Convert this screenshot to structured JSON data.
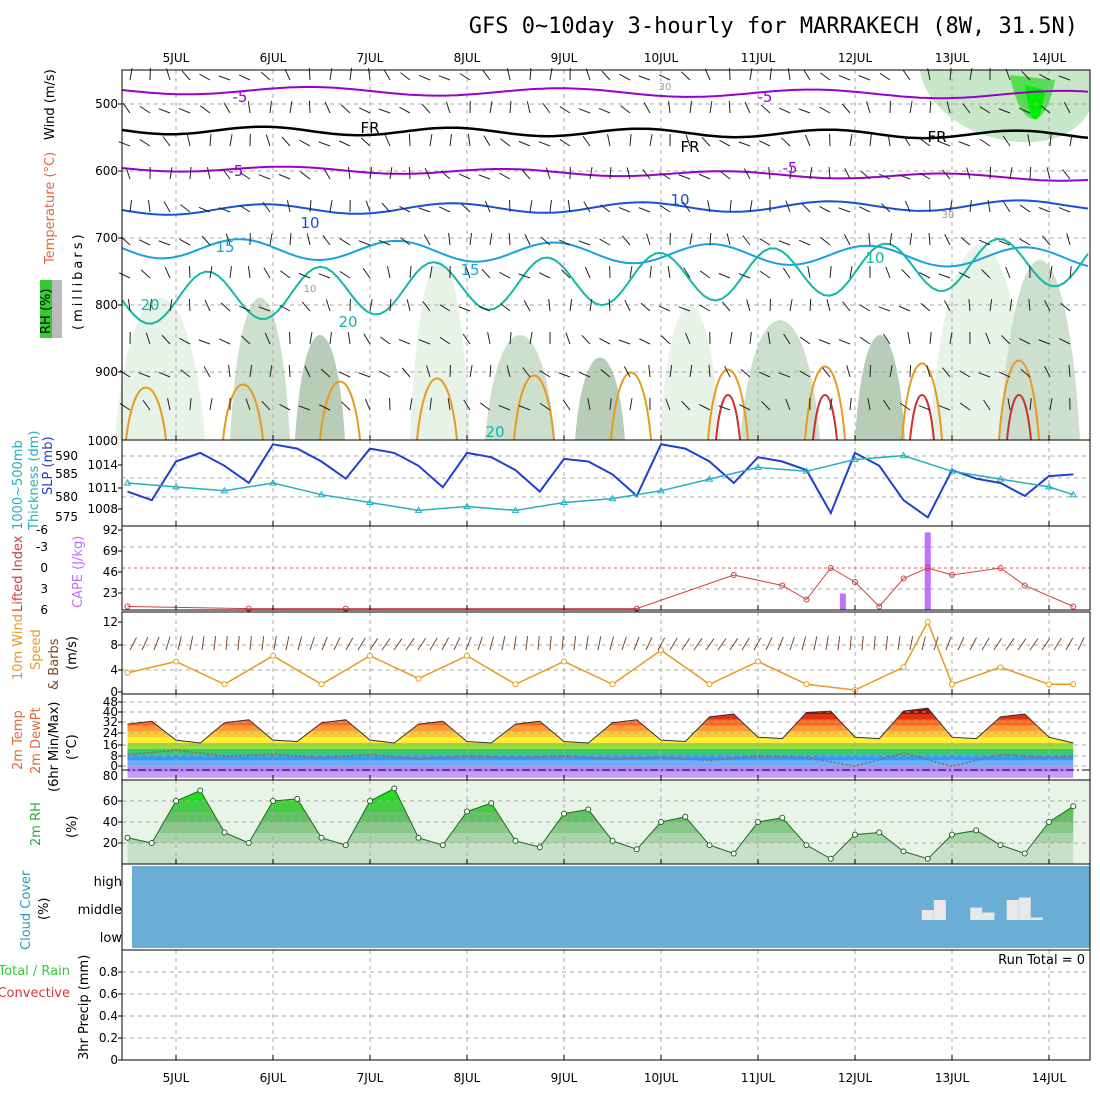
{
  "title": "GFS 0~10day 3-hourly for MARRAKECH (8W, 31.5N)",
  "colors": {
    "temp_purple": "#9900cc",
    "temp_blue": "#1a4fd6",
    "temp_cyan": "#1aa0e0",
    "temp_teal": "#11b8a8",
    "temp_orange": "#e89a20",
    "temp_red": "#d23030",
    "slp": "#1f3fd0",
    "thickness": "#22b0c0",
    "cape": "#c070ff",
    "lifted_index": "#d04040",
    "wind10m": "#e89a20",
    "barb": "#7a4a2a",
    "rh_green": "#33bb33",
    "cloud_bg": "#6aaed6",
    "cloud_fill": "#e8e8e8"
  },
  "date_labels": [
    "5JUL",
    "6JUL",
    "7JUL",
    "8JUL",
    "9JUL",
    "10JUL",
    "11JUL",
    "12JUL",
    "13JUL",
    "14JUL"
  ],
  "panels": {
    "upper": {
      "ylabels": {
        "wind": "Wind (m/s)",
        "temp": "Temperature (°C)",
        "rh": "RH (%)",
        "mb": "(millibars)"
      },
      "yticks": [
        "500",
        "600",
        "700",
        "800",
        "900"
      ],
      "contour_labels": [
        "-5",
        "-5",
        "FR",
        "FR",
        "FR",
        "-5",
        "-5",
        "10",
        "10",
        "15",
        "15",
        "20",
        "20",
        "20",
        "10",
        "30",
        "30",
        "10"
      ]
    },
    "slp": {
      "ylabels": {
        "thick": "Thickness (dm)",
        "thick2": "1000~500mb",
        "slp": "SLP (mb)"
      },
      "left_ticks": [
        "590",
        "585",
        "580",
        "575"
      ],
      "right_ticks": [
        "1014",
        "1011",
        "1008"
      ],
      "top_tick": "1000"
    },
    "cape": {
      "ylabels": {
        "li": "Lifted Index",
        "cape": "CAPE (J/kg)"
      },
      "left_ticks": [
        "-6",
        "-3",
        "0",
        "3",
        "6"
      ],
      "right_ticks": [
        "92",
        "69",
        "46",
        "23"
      ]
    },
    "wind10": {
      "ylabels": {
        "a": "10m Wind",
        "b": "Speed",
        "c": "& Barbs",
        "d": "(m/s)"
      },
      "yticks": [
        "12",
        "8",
        "4",
        "0"
      ]
    },
    "temp2m": {
      "ylabels": {
        "a": "2m Temp",
        "b": "2m DewPt",
        "c": "(6hr Min/Max)",
        "d": "(°C)"
      },
      "yticks": [
        "40",
        "32",
        "24",
        "16",
        "8",
        "0",
        "80"
      ],
      "yticks2": [
        "48",
        "40",
        "32",
        "24",
        "16",
        "8",
        "0"
      ]
    },
    "rh2m": {
      "ylabels": {
        "a": "2m RH",
        "b": "(%)"
      },
      "yticks": [
        "60",
        "40",
        "20"
      ]
    },
    "cloud": {
      "ylabels": {
        "a": "Cloud Cover",
        "b": "(%)"
      },
      "levels": [
        "high",
        "middle",
        "low"
      ]
    },
    "precip": {
      "ylabels": {
        "a": "Total / Rain",
        "b": "Convective",
        "c": "3hr Precip (mm)"
      },
      "yticks": [
        "0.8",
        "0.6",
        "0.4",
        "0.2",
        "0"
      ],
      "run_total": "Run Total = 0"
    }
  },
  "chart_data": [
    {
      "type": "line",
      "name": "SLP (mb)",
      "x": [
        "4JUL12",
        "4JUL18",
        "5JUL00",
        "5JUL06",
        "5JUL12",
        "5JUL18",
        "6JUL00",
        "6JUL06",
        "6JUL12",
        "6JUL18",
        "7JUL00",
        "7JUL06",
        "7JUL12",
        "7JUL18",
        "8JUL00",
        "8JUL06",
        "8JUL12",
        "8JUL18",
        "9JUL00",
        "9JUL06",
        "9JUL12",
        "9JUL18",
        "10JUL00",
        "10JUL06",
        "10JUL12",
        "10JUL18",
        "11JUL00",
        "11JUL06",
        "11JUL12",
        "11JUL18",
        "12JUL00",
        "12JUL06",
        "12JUL12",
        "12JUL18",
        "13JUL00",
        "13JUL06",
        "13JUL12",
        "13JUL18",
        "14JUL00",
        "14JUL06"
      ],
      "values": [
        1010.0,
        1009.0,
        1013.5,
        1014.5,
        1013.0,
        1011.0,
        1015.5,
        1015.0,
        1013.5,
        1011.5,
        1015.0,
        1014.5,
        1013.0,
        1010.5,
        1014.5,
        1014.0,
        1012.5,
        1010.0,
        1013.8,
        1013.5,
        1012.0,
        1009.5,
        1015.5,
        1015.0,
        1013.5,
        1011.0,
        1014.0,
        1013.5,
        1012.5,
        1007.5,
        1014.5,
        1013.0,
        1009.0,
        1007.0,
        1012.5,
        1011.5,
        1011.0,
        1009.5,
        1011.8,
        1012.0
      ],
      "ylim": [
        1006,
        1016
      ]
    },
    {
      "type": "line",
      "name": "1000~500mb Thickness (dm)",
      "x": [
        "4JUL12",
        "5JUL00",
        "5JUL12",
        "6JUL00",
        "6JUL12",
        "7JUL00",
        "7JUL12",
        "8JUL00",
        "8JUL12",
        "9JUL00",
        "9JUL12",
        "10JUL00",
        "10JUL12",
        "11JUL00",
        "11JUL12",
        "12JUL00",
        "12JUL12",
        "13JUL00",
        "13JUL12",
        "14JUL00",
        "14JUL06"
      ],
      "values": [
        583,
        582,
        581,
        583,
        580,
        578,
        576,
        577,
        576,
        578,
        579,
        581,
        584,
        587,
        586,
        589,
        590,
        586,
        584,
        582,
        580
      ],
      "ylim": [
        572,
        594
      ]
    },
    {
      "type": "bar",
      "name": "CAPE (J/kg)",
      "x": [
        "11JUL21",
        "12JUL18"
      ],
      "values": [
        18,
        85
      ],
      "ylim": [
        0,
        92
      ]
    },
    {
      "type": "line",
      "name": "Lifted Index",
      "x": [
        "4JUL12",
        "5JUL18",
        "6JUL18",
        "9JUL18",
        "10JUL18",
        "11JUL06",
        "11JUL12",
        "11JUL18",
        "12JUL00",
        "12JUL06",
        "12JUL12",
        "12JUL18",
        "13JUL00",
        "13JUL12",
        "13JUL18",
        "14JUL06"
      ],
      "values": [
        5.5,
        5.8,
        5.8,
        5.8,
        1.0,
        2.5,
        4.5,
        0.0,
        2.0,
        5.5,
        1.5,
        0.0,
        1.0,
        0.0,
        2.5,
        5.5
      ],
      "ylim": [
        6,
        -6
      ]
    },
    {
      "type": "line",
      "name": "10m Wind Speed (m/s)",
      "x": [
        "4JUL12",
        "5JUL00",
        "5JUL12",
        "6JUL00",
        "6JUL12",
        "7JUL00",
        "7JUL12",
        "8JUL00",
        "8JUL12",
        "9JUL00",
        "9JUL12",
        "10JUL00",
        "10JUL12",
        "11JUL00",
        "11JUL12",
        "12JUL00",
        "12JUL12",
        "12JUL18",
        "13JUL00",
        "13JUL12",
        "14JUL00",
        "14JUL06"
      ],
      "values": [
        3,
        5,
        1,
        6,
        1,
        6,
        2,
        6,
        1,
        5,
        1,
        7,
        1,
        5,
        1,
        0,
        4,
        12,
        1,
        4,
        1,
        1
      ],
      "ylim": [
        0,
        13
      ]
    },
    {
      "type": "area",
      "name": "2m Temp (°C)",
      "x": [
        "4JUL12",
        "4JUL18",
        "5JUL00",
        "5JUL06",
        "5JUL12",
        "5JUL18",
        "6JUL00",
        "6JUL06",
        "6JUL12",
        "6JUL18",
        "7JUL00",
        "7JUL06",
        "7JUL12",
        "7JUL18",
        "8JUL00",
        "8JUL06",
        "8JUL12",
        "8JUL18",
        "9JUL00",
        "9JUL06",
        "9JUL12",
        "9JUL18",
        "10JUL00",
        "10JUL06",
        "10JUL12",
        "10JUL18",
        "11JUL00",
        "11JUL06",
        "11JUL12",
        "11JUL18",
        "12JUL00",
        "12JUL06",
        "12JUL12",
        "12JUL18",
        "13JUL00",
        "13JUL06",
        "13JUL12",
        "13JUL18",
        "14JUL00",
        "14JUL06"
      ],
      "values": [
        33,
        35,
        22,
        20,
        34,
        36,
        22,
        21,
        34,
        36,
        22,
        20,
        33,
        35,
        21,
        20,
        33,
        35,
        21,
        20,
        34,
        36,
        22,
        21,
        38,
        40,
        24,
        23,
        41,
        42,
        24,
        23,
        42,
        44,
        24,
        23,
        38,
        40,
        24,
        20
      ],
      "ylim": [
        -4,
        48
      ]
    },
    {
      "type": "line",
      "name": "2m DewPt (°C)",
      "x": [
        "4JUL12",
        "5JUL00",
        "5JUL12",
        "6JUL00",
        "6JUL12",
        "7JUL00",
        "7JUL12",
        "8JUL00",
        "8JUL12",
        "9JUL00",
        "9JUL12",
        "10JUL00",
        "10JUL12",
        "11JUL00",
        "11JUL12",
        "12JUL00",
        "12JUL12",
        "13JUL00",
        "13JUL12",
        "14JUL00",
        "14JUL06"
      ],
      "values": [
        12,
        15,
        11,
        12,
        10,
        12,
        9,
        11,
        10,
        11,
        9,
        10,
        8,
        11,
        10,
        4,
        13,
        4,
        12,
        10,
        11
      ],
      "ylim": [
        -4,
        48
      ]
    },
    {
      "type": "area",
      "name": "2m RH (%)",
      "x": [
        "4JUL12",
        "4JUL18",
        "5JUL00",
        "5JUL06",
        "5JUL12",
        "5JUL18",
        "6JUL00",
        "6JUL06",
        "6JUL12",
        "6JUL18",
        "7JUL00",
        "7JUL06",
        "7JUL12",
        "7JUL18",
        "8JUL00",
        "8JUL06",
        "8JUL12",
        "8JUL18",
        "9JUL00",
        "9JUL06",
        "9JUL12",
        "9JUL18",
        "10JUL00",
        "10JUL06",
        "10JUL12",
        "10JUL18",
        "11JUL00",
        "11JUL06",
        "11JUL12",
        "11JUL18",
        "12JUL00",
        "12JUL06",
        "12JUL12",
        "12JUL18",
        "13JUL00",
        "13JUL06",
        "13JUL12",
        "13JUL18",
        "14JUL00",
        "14JUL06"
      ],
      "values": [
        25,
        20,
        60,
        70,
        30,
        20,
        60,
        62,
        25,
        18,
        60,
        72,
        25,
        18,
        50,
        58,
        22,
        16,
        48,
        52,
        22,
        14,
        40,
        45,
        18,
        10,
        40,
        44,
        18,
        5,
        28,
        30,
        12,
        5,
        28,
        32,
        18,
        10,
        40,
        55
      ],
      "ylim": [
        0,
        80
      ]
    },
    {
      "type": "bar",
      "name": "Cloud Cover (%)",
      "x": [
        "12JUL18",
        "12JUL21",
        "13JUL06",
        "13JUL09",
        "13JUL15",
        "13JUL18",
        "13JUL21"
      ],
      "values": [
        20,
        40,
        25,
        15,
        40,
        45,
        5
      ],
      "ylim": [
        0,
        100
      ]
    },
    {
      "type": "bar",
      "name": "3hr Precip (mm)",
      "x": [],
      "values": [],
      "ylim": [
        0,
        1
      ]
    }
  ]
}
